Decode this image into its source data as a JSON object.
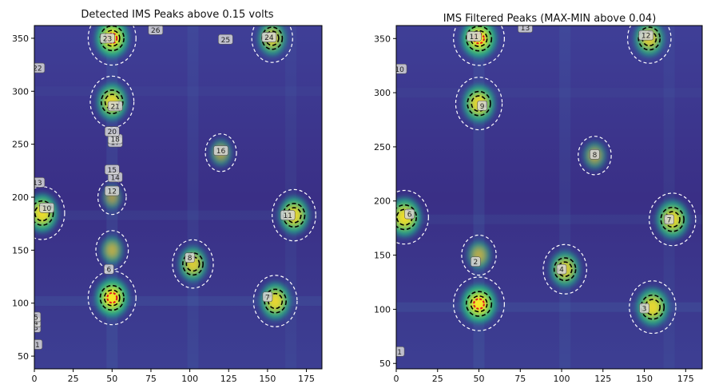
{
  "chart_data": [
    {
      "type": "heatmap",
      "title": "Detected IMS Peaks above 0.15 volts",
      "xlabel": "",
      "ylabel": "",
      "xlim": [
        0,
        185
      ],
      "ylim": [
        38,
        362
      ],
      "xticks": [
        0,
        25,
        50,
        75,
        100,
        125,
        150,
        175
      ],
      "yticks": [
        50,
        100,
        150,
        200,
        250,
        300,
        350
      ],
      "peaks": [
        {
          "label": "1",
          "x": 2,
          "y": 61
        },
        {
          "label": "3",
          "x": 1,
          "y": 77
        },
        {
          "label": "4",
          "x": 1,
          "y": 82
        },
        {
          "label": "5",
          "x": 1,
          "y": 87
        },
        {
          "label": "6",
          "x": 48,
          "y": 132
        },
        {
          "label": "7",
          "x": 150,
          "y": 106
        },
        {
          "label": "8",
          "x": 100,
          "y": 143
        },
        {
          "label": "10",
          "x": 8,
          "y": 190
        },
        {
          "label": "11",
          "x": 163,
          "y": 183
        },
        {
          "label": "12",
          "x": 50,
          "y": 206
        },
        {
          "label": "13",
          "x": 2,
          "y": 214
        },
        {
          "label": "14",
          "x": 52,
          "y": 219
        },
        {
          "label": "15",
          "x": 50,
          "y": 226
        },
        {
          "label": "16",
          "x": 120,
          "y": 244
        },
        {
          "label": "17",
          "x": 52,
          "y": 252
        },
        {
          "label": "18",
          "x": 52,
          "y": 255
        },
        {
          "label": "20",
          "x": 50,
          "y": 262
        },
        {
          "label": "21",
          "x": 52,
          "y": 286
        },
        {
          "label": "22",
          "x": 2,
          "y": 322
        },
        {
          "label": "23",
          "x": 47,
          "y": 350
        },
        {
          "label": "24",
          "x": 151,
          "y": 351
        },
        {
          "label": "25",
          "x": 123,
          "y": 349
        },
        {
          "label": "26",
          "x": 78,
          "y": 358
        }
      ],
      "blobs": [
        {
          "x": 50,
          "y": 105,
          "strength": 1.0
        },
        {
          "x": 50,
          "y": 290,
          "strength": 0.85
        },
        {
          "x": 50,
          "y": 350,
          "strength": 1.0
        },
        {
          "x": 5,
          "y": 185,
          "strength": 0.9
        },
        {
          "x": 167,
          "y": 183,
          "strength": 0.85
        },
        {
          "x": 155,
          "y": 102,
          "strength": 0.85
        },
        {
          "x": 102,
          "y": 137,
          "strength": 0.75
        },
        {
          "x": 153,
          "y": 350,
          "strength": 0.75
        },
        {
          "x": 120,
          "y": 242,
          "strength": 0.4
        },
        {
          "x": 50,
          "y": 200,
          "strength": 0.3
        },
        {
          "x": 50,
          "y": 150,
          "strength": 0.45
        }
      ]
    },
    {
      "type": "heatmap",
      "title": "IMS Filtered Peaks (MAX-MIN above 0.04)",
      "xlabel": "",
      "ylabel": "",
      "xlim": [
        0,
        185
      ],
      "ylim": [
        45,
        362
      ],
      "xticks": [
        0,
        25,
        50,
        75,
        100,
        125,
        150,
        175
      ],
      "yticks": [
        50,
        100,
        150,
        200,
        250,
        300,
        350
      ],
      "peaks": [
        {
          "label": "1",
          "x": 2,
          "y": 61
        },
        {
          "label": "2",
          "x": 48,
          "y": 144
        },
        {
          "label": "3",
          "x": 150,
          "y": 101
        },
        {
          "label": "4",
          "x": 100,
          "y": 137
        },
        {
          "label": "6",
          "x": 8,
          "y": 188
        },
        {
          "label": "7",
          "x": 165,
          "y": 183
        },
        {
          "label": "8",
          "x": 120,
          "y": 243
        },
        {
          "label": "9",
          "x": 52,
          "y": 288
        },
        {
          "label": "10",
          "x": 2,
          "y": 322
        },
        {
          "label": "11",
          "x": 47,
          "y": 352
        },
        {
          "label": "12",
          "x": 151,
          "y": 353
        },
        {
          "label": "13",
          "x": 78,
          "y": 360
        }
      ],
      "blobs": [
        {
          "x": 50,
          "y": 105,
          "strength": 1.0
        },
        {
          "x": 50,
          "y": 290,
          "strength": 0.85
        },
        {
          "x": 50,
          "y": 350,
          "strength": 1.0
        },
        {
          "x": 5,
          "y": 185,
          "strength": 0.9
        },
        {
          "x": 167,
          "y": 183,
          "strength": 0.85
        },
        {
          "x": 155,
          "y": 102,
          "strength": 0.85
        },
        {
          "x": 102,
          "y": 137,
          "strength": 0.75
        },
        {
          "x": 153,
          "y": 350,
          "strength": 0.75
        },
        {
          "x": 120,
          "y": 242,
          "strength": 0.4
        },
        {
          "x": 50,
          "y": 150,
          "strength": 0.45
        }
      ]
    }
  ],
  "colors": {
    "background": "#3b2c82",
    "stripe": "#3d6f9a",
    "level_low": "#2a8f8a",
    "level_mid": "#4fc46b",
    "level_high": "#c8e03a",
    "peak": "#f7e424",
    "contour_dashed_white": "#ffffff",
    "contour_dashed_black": "#000000",
    "contour_red": "#e0151e"
  }
}
